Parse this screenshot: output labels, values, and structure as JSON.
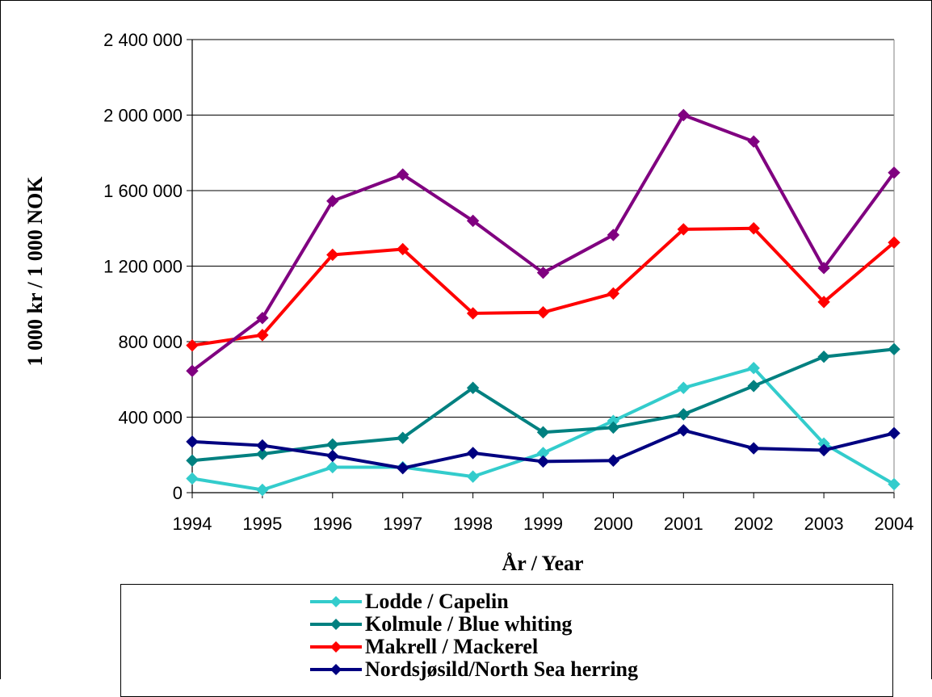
{
  "chart_data": {
    "type": "line",
    "title": "",
    "xlabel": "År / Year",
    "ylabel": "1 000 kr / 1 000 NOK",
    "ylim": [
      0,
      2400000
    ],
    "y_ticks": [
      0,
      400000,
      800000,
      1200000,
      1600000,
      2000000,
      2400000
    ],
    "y_tick_labels": [
      "0",
      "400 000",
      "800 000",
      "1 200 000",
      "1 600 000",
      "2 000 000",
      "2 400 000"
    ],
    "categories": [
      "1994",
      "1995",
      "1996",
      "1997",
      "1998",
      "1999",
      "2000",
      "2001",
      "2002",
      "2003",
      "2004"
    ],
    "grid": true,
    "legend_position": "bottom",
    "series": [
      {
        "name": "Lodde / Capelin",
        "color": "#33CCCC",
        "marker": "diamond",
        "values": [
          75000,
          15000,
          135000,
          135000,
          85000,
          210000,
          380000,
          555000,
          660000,
          260000,
          45000
        ]
      },
      {
        "name": "Kolmule / Blue whiting",
        "color": "#008080",
        "marker": "diamond",
        "values": [
          170000,
          205000,
          255000,
          290000,
          555000,
          320000,
          345000,
          415000,
          565000,
          720000,
          760000
        ]
      },
      {
        "name": "Makrell / Mackerel",
        "color": "#FF0000",
        "marker": "diamond",
        "values": [
          780000,
          835000,
          1260000,
          1290000,
          950000,
          955000,
          1055000,
          1395000,
          1400000,
          1010000,
          1325000
        ]
      },
      {
        "name": "Nordsjøsild/North Sea herring",
        "color": "#000080",
        "marker": "diamond",
        "values": [
          270000,
          250000,
          195000,
          130000,
          210000,
          165000,
          170000,
          330000,
          235000,
          225000,
          315000
        ]
      },
      {
        "color": "#800080",
        "marker": "diamond",
        "values": [
          645000,
          925000,
          1545000,
          1685000,
          1440000,
          1165000,
          1365000,
          2000000,
          1860000,
          1190000,
          1695000
        ]
      }
    ]
  }
}
